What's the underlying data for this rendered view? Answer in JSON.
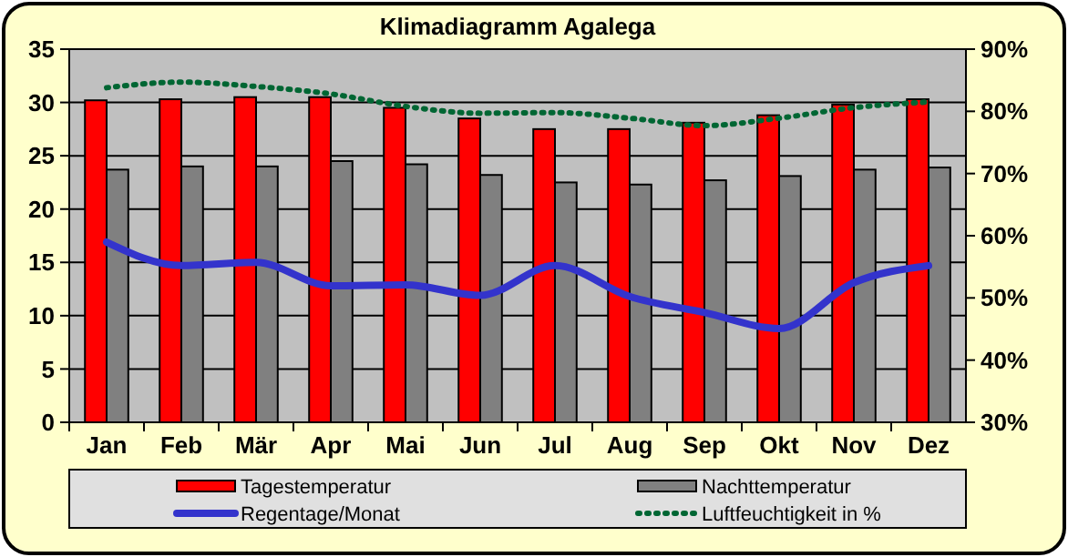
{
  "chart_data": {
    "type": "bar",
    "title": "Klimadiagramm Agalega",
    "categories": [
      "Jan",
      "Feb",
      "Mär",
      "Apr",
      "Mai",
      "Jun",
      "Jul",
      "Aug",
      "Sep",
      "Okt",
      "Nov",
      "Dez"
    ],
    "series": [
      {
        "name": "Tagestemperatur",
        "color": "#ff0000",
        "values": [
          30.2,
          30.3,
          30.5,
          30.5,
          29.5,
          28.5,
          27.5,
          27.5,
          28.1,
          28.8,
          29.8,
          30.3
        ]
      },
      {
        "name": "Nachttemperatur",
        "color": "#808080",
        "values": [
          23.7,
          24.0,
          24.0,
          24.5,
          24.2,
          23.2,
          22.5,
          22.3,
          22.7,
          23.1,
          23.7,
          23.9
        ]
      },
      {
        "name": "Regentage/Monat",
        "type": "line",
        "color": "#3333cc",
        "marker": "none",
        "line_style": "solid",
        "values": [
          16.9,
          14.7,
          15.0,
          12.8,
          12.9,
          11.9,
          14.7,
          11.8,
          10.3,
          8.8,
          13.1,
          14.7
        ]
      },
      {
        "name": "Luftfeuchtigkeit in %",
        "type": "line",
        "axis": "y2",
        "color": "#006633",
        "marker": "none",
        "line_style": "dotted",
        "values": [
          83.8,
          84.7,
          84,
          82.8,
          80.8,
          79.7,
          79.8,
          78.9,
          77.7,
          78.9,
          80.6,
          81.5
        ]
      }
    ],
    "ylim": [
      0,
      35
    ],
    "yticks": [
      0,
      5,
      10,
      15,
      20,
      25,
      30,
      35
    ],
    "y2lim": [
      30,
      90
    ],
    "y2ticks": [
      {
        "value": 30,
        "label": "30%"
      },
      {
        "value": 40,
        "label": "40%"
      },
      {
        "value": 50,
        "label": "50%"
      },
      {
        "value": 60,
        "label": "60%"
      },
      {
        "value": 70,
        "label": "70%"
      },
      {
        "value": 80,
        "label": "80%"
      },
      {
        "value": 90,
        "label": "90%"
      }
    ],
    "grid": "y",
    "legend": "bottom"
  }
}
